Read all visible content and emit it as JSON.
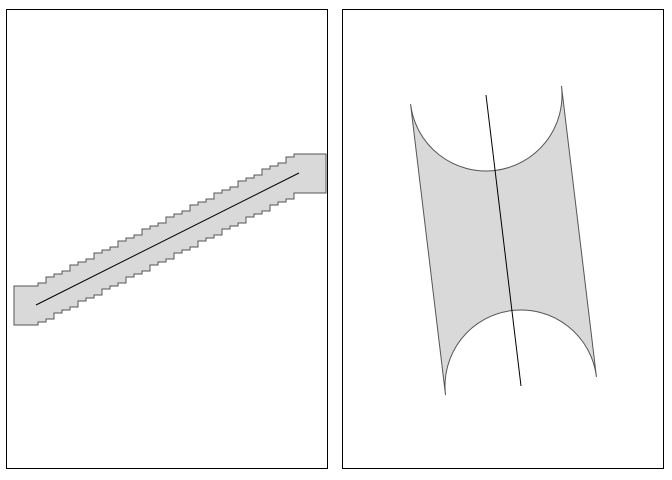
{
  "colors": {
    "background": "#ffffff",
    "panel_border": "#000000",
    "buffer_fill": "#d9d9d9",
    "buffer_stroke": "#555555",
    "line_stroke": "#000000"
  },
  "panels": [
    {
      "id": "left",
      "description_key": "pixelated-buffer",
      "fill_color": "#d9d9d9",
      "outline_style": "stepped"
    },
    {
      "id": "right",
      "description_key": "smooth-buffer",
      "fill_color": "#d9d9d9",
      "outline_style": "rounded"
    }
  ]
}
